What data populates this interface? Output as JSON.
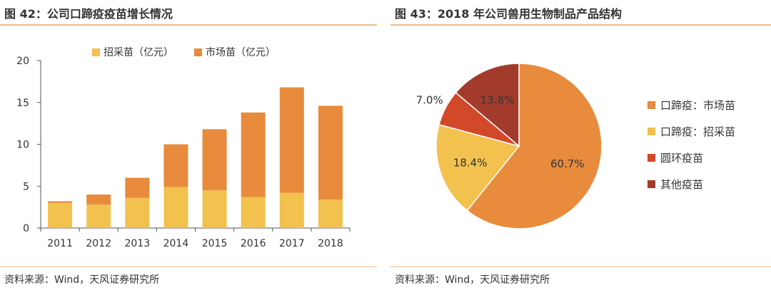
{
  "left": {
    "title": "图 42：公司口蹄疫疫苗增长情况",
    "source": "资料来源：Wind，天风证券研究所"
  },
  "right": {
    "title": "图 43：2018 年公司兽用生物制品产品结构",
    "source": "资料来源：Wind，天风证券研究所"
  },
  "chart_data": [
    {
      "type": "bar",
      "stacked": true,
      "categories": [
        "2011",
        "2012",
        "2013",
        "2014",
        "2015",
        "2016",
        "2017",
        "2018"
      ],
      "series": [
        {
          "name": "招采苗（亿元）",
          "color": "#f2c14e",
          "values": [
            3.0,
            2.8,
            3.6,
            4.9,
            4.5,
            3.7,
            4.2,
            3.4
          ]
        },
        {
          "name": "市场苗（亿元）",
          "color": "#e88b3c",
          "values": [
            0.2,
            1.2,
            2.4,
            5.1,
            7.3,
            10.1,
            12.6,
            11.2
          ]
        }
      ],
      "ylim": [
        0,
        20
      ],
      "yticks": [
        "0",
        "5",
        "10",
        "15",
        "20"
      ],
      "legend": "top",
      "grid": false
    },
    {
      "type": "pie",
      "slices": [
        {
          "label": "口蹄疫：市场苗",
          "value": 60.7,
          "display": "60.7%",
          "color": "#e88b3c"
        },
        {
          "label": "口蹄疫：招采苗",
          "value": 18.4,
          "display": "18.4%",
          "color": "#f2c14e"
        },
        {
          "label": "圆环疫苗",
          "value": 7.0,
          "display": "7.0%",
          "color": "#d2492a"
        },
        {
          "label": "其他疫苗",
          "value": 13.8,
          "display": "13.8%",
          "color": "#a33b2c"
        }
      ],
      "legend": "right"
    }
  ]
}
